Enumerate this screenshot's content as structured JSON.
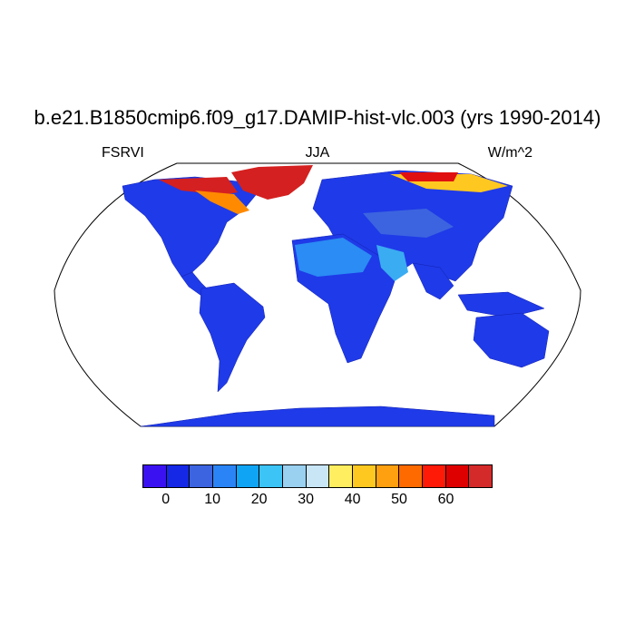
{
  "title": "b.e21.B1850cmip6.f09_g17.DAMIP-hist-vlc.003 (yrs 1990-2014)",
  "left_label": "FSRVI",
  "center_label": "JJA",
  "right_label": "W/m^2",
  "colorbar": {
    "colors": [
      "#3a12f2",
      "#1428e6",
      "#3c64e0",
      "#2a84f6",
      "#10a4f4",
      "#3cc4f6",
      "#9ad0f0",
      "#c8e6f6",
      "#ffee60",
      "#ffc820",
      "#ffa010",
      "#ff6a00",
      "#ff1a08",
      "#de0000",
      "#d42a2a"
    ],
    "tick_labels": [
      "0",
      "10",
      "20",
      "30",
      "40",
      "50",
      "60"
    ]
  },
  "legend_colors": {
    "land_base": "#1f3ae8",
    "land_light": "#2f6af0",
    "desert": "#2a8cf4",
    "arabia": "#3aacf2",
    "greenland": "#d42020",
    "arctic_hot": "#ff8a00"
  }
}
